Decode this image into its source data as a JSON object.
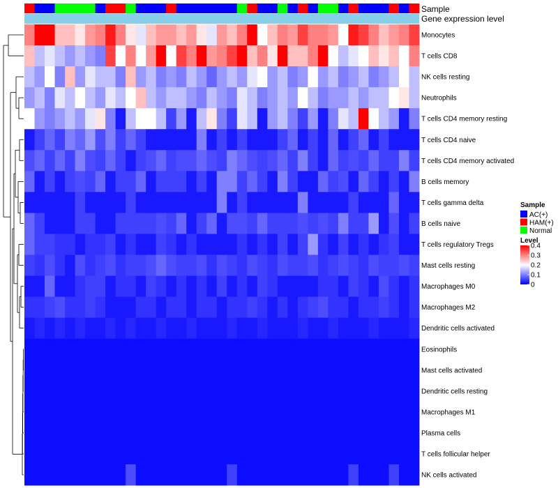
{
  "chart_data": {
    "type": "heatmap",
    "title": "",
    "annotation_tracks": [
      "Sample",
      "Gene expression level"
    ],
    "rows": [
      "Monocytes",
      "T cells CD8",
      "NK cells resting",
      "Neutrophils",
      "T cells CD4 memory resting",
      "T cells CD4 naive",
      "T cells CD4 memory activated",
      "B cells memory",
      "T cells gamma delta",
      "B cells naive",
      "T cells regulatory  Tregs",
      "Mast cells resting",
      "Macrophages M0",
      "Macrophages M2",
      "Dendritic cells activated",
      "Eosinophils",
      "Mast cells activated",
      "Dendritic cells resting",
      "Macrophages M1",
      "Plasma cells",
      "T cells follicular helper",
      "NK cells activated"
    ],
    "sample_groups": [
      "HAM(+)",
      "AC(+)",
      "AC(+)",
      "Normal",
      "Normal",
      "Normal",
      "Normal",
      "AC(+)",
      "HAM(+)",
      "HAM(+)",
      "Normal",
      "AC(+)",
      "AC(+)",
      "AC(+)",
      "HAM(+)",
      "AC(+)",
      "AC(+)",
      "AC(+)",
      "AC(+)",
      "AC(+)",
      "AC(+)",
      "Normal",
      "HAM(+)",
      "AC(+)",
      "AC(+)",
      "Normal",
      "AC(+)",
      "HAM(+)",
      "AC(+)",
      "Normal",
      "Normal",
      "AC(+)",
      "HAM(+)",
      "AC(+)",
      "AC(+)",
      "AC(+)",
      "HAM(+)",
      "AC(+)",
      "HAM(+)"
    ],
    "values": [
      [
        0.3,
        0.4,
        0.4,
        0.25,
        0.25,
        0.22,
        0.28,
        0.3,
        0.38,
        0.3,
        0.22,
        0.18,
        0.25,
        0.28,
        0.28,
        0.25,
        0.28,
        0.22,
        0.18,
        0.28,
        0.25,
        0.3,
        0.4,
        0.2,
        0.25,
        0.3,
        0.28,
        0.35,
        0.3,
        0.3,
        0.28,
        0.2,
        0.38,
        0.35,
        0.3,
        0.25,
        0.28,
        0.3,
        0.35
      ],
      [
        0.25,
        0.15,
        0.18,
        0.15,
        0.12,
        0.15,
        0.12,
        0.1,
        0.35,
        0.2,
        0.3,
        0.2,
        0.28,
        0.4,
        0.2,
        0.35,
        0.3,
        0.4,
        0.28,
        0.3,
        0.35,
        0.4,
        0.25,
        0.3,
        0.22,
        0.4,
        0.25,
        0.25,
        0.3,
        0.4,
        0.2,
        0.15,
        0.18,
        0.2,
        0.25,
        0.22,
        0.25,
        0.2,
        0.3
      ],
      [
        0.15,
        0.12,
        0.2,
        0.1,
        0.25,
        0.12,
        0.18,
        0.15,
        0.15,
        0.1,
        0.25,
        0.12,
        0.15,
        0.1,
        0.12,
        0.1,
        0.15,
        0.12,
        0.08,
        0.12,
        0.15,
        0.12,
        0.18,
        0.2,
        0.12,
        0.15,
        0.1,
        0.12,
        0.2,
        0.12,
        0.15,
        0.1,
        0.12,
        0.15,
        0.1,
        0.12,
        0.15,
        0.2,
        0.15
      ],
      [
        0.12,
        0.15,
        0.1,
        0.18,
        0.15,
        0.2,
        0.15,
        0.12,
        0.18,
        0.15,
        0.2,
        0.25,
        0.15,
        0.12,
        0.15,
        0.15,
        0.12,
        0.1,
        0.15,
        0.12,
        0.1,
        0.18,
        0.15,
        0.1,
        0.12,
        0.15,
        0.12,
        0.2,
        0.15,
        0.1,
        0.12,
        0.12,
        0.15,
        0.12,
        0.15,
        0.15,
        0.2,
        0.22,
        0.15
      ],
      [
        0.2,
        0.12,
        0.1,
        0.12,
        0.15,
        0.12,
        0.18,
        0.22,
        0.1,
        0.02,
        0.15,
        0.2,
        0.2,
        0.15,
        0.05,
        0.12,
        0.02,
        0.15,
        0.22,
        0.1,
        0.05,
        0.18,
        0.15,
        0.02,
        0.12,
        0.15,
        0.1,
        0.05,
        0.12,
        0.02,
        0.1,
        0.18,
        0.15,
        0.4,
        0.2,
        0.15,
        0.12,
        0.02,
        0.1
      ],
      [
        0.02,
        0.05,
        0.08,
        0.05,
        0.1,
        0.08,
        0.12,
        0.06,
        0.1,
        0.05,
        0.08,
        0.05,
        0.02,
        0.02,
        0.02,
        0.02,
        0.02,
        0.1,
        0.02,
        0.05,
        0.02,
        0.05,
        0.02,
        0.02,
        0.02,
        0.05,
        0.08,
        0.02,
        0.05,
        0.02,
        0.08,
        0.02,
        0.05,
        0.08,
        0.02,
        0.05,
        0.02,
        0.02,
        0.02
      ],
      [
        0.06,
        0.08,
        0.05,
        0.08,
        0.05,
        0.1,
        0.06,
        0.05,
        0.08,
        0.05,
        0.02,
        0.05,
        0.06,
        0.08,
        0.05,
        0.06,
        0.06,
        0.08,
        0.06,
        0.05,
        0.1,
        0.08,
        0.06,
        0.05,
        0.06,
        0.08,
        0.05,
        0.1,
        0.05,
        0.02,
        0.08,
        0.05,
        0.06,
        0.05,
        0.08,
        0.05,
        0.05,
        0.1,
        0.05
      ],
      [
        0.08,
        0.02,
        0.05,
        0.02,
        0.05,
        0.06,
        0.05,
        0.08,
        0.02,
        0.05,
        0.05,
        0.08,
        0.02,
        0.05,
        0.05,
        0.05,
        0.02,
        0.05,
        0.02,
        0.1,
        0.1,
        0.05,
        0.08,
        0.05,
        0.02,
        0.1,
        0.05,
        0.02,
        0.02,
        0.08,
        0.05,
        0.06,
        0.02,
        0.08,
        0.05,
        0.02,
        0.05,
        0.02,
        0.1
      ],
      [
        0.02,
        0.02,
        0.02,
        0.02,
        0.02,
        0.05,
        0.02,
        0.02,
        0.02,
        0.02,
        0.05,
        0.02,
        0.02,
        0.02,
        0.02,
        0.02,
        0.02,
        0.02,
        0.02,
        0.1,
        0.02,
        0.05,
        0.02,
        0.02,
        0.02,
        0.02,
        0.02,
        0.1,
        0.02,
        0.02,
        0.02,
        0.02,
        0.05,
        0.02,
        0.02,
        0.02,
        0.08,
        0.02,
        0.02
      ],
      [
        0.08,
        0.05,
        0.02,
        0.02,
        0.02,
        0.05,
        0.05,
        0.02,
        0.02,
        0.05,
        0.05,
        0.05,
        0.05,
        0.06,
        0.05,
        0.08,
        0.02,
        0.05,
        0.08,
        0.02,
        0.06,
        0.06,
        0.05,
        0.08,
        0.05,
        0.05,
        0.05,
        0.06,
        0.05,
        0.06,
        0.05,
        0.1,
        0.05,
        0.05,
        0.12,
        0.02,
        0.06,
        0.02,
        0.05
      ],
      [
        0.08,
        0.05,
        0.05,
        0.04,
        0.04,
        0.02,
        0.04,
        0.04,
        0.05,
        0.02,
        0.04,
        0.02,
        0.02,
        0.05,
        0.04,
        0.02,
        0.04,
        0.02,
        0.02,
        0.02,
        0.02,
        0.04,
        0.02,
        0.04,
        0.02,
        0.05,
        0.02,
        0.05,
        0.12,
        0.04,
        0.02,
        0.05,
        0.02,
        0.04,
        0.02,
        0.04,
        0.05,
        0.02,
        0.02
      ],
      [
        0.05,
        0.04,
        0.06,
        0.04,
        0.02,
        0.06,
        0.04,
        0.05,
        0.06,
        0.04,
        0.05,
        0.05,
        0.06,
        0.08,
        0.06,
        0.05,
        0.05,
        0.06,
        0.04,
        0.06,
        0.05,
        0.04,
        0.06,
        0.05,
        0.04,
        0.06,
        0.05,
        0.05,
        0.06,
        0.04,
        0.05,
        0.06,
        0.05,
        0.04,
        0.06,
        0.05,
        0.05,
        0.06,
        0.05
      ],
      [
        0.02,
        0.02,
        0.08,
        0.02,
        0.02,
        0.04,
        0.05,
        0.05,
        0.02,
        0.04,
        0.04,
        0.02,
        0.05,
        0.04,
        0.02,
        0.04,
        0.02,
        0.04,
        0.02,
        0.05,
        0.02,
        0.04,
        0.02,
        0.05,
        0.04,
        0.02,
        0.02,
        0.02,
        0.02,
        0.04,
        0.04,
        0.02,
        0.05,
        0.04,
        0.02,
        0.06,
        0.04,
        0.02,
        0.04
      ],
      [
        0.04,
        0.04,
        0.05,
        0.06,
        0.04,
        0.04,
        0.05,
        0.04,
        0.02,
        0.02,
        0.02,
        0.04,
        0.04,
        0.02,
        0.04,
        0.04,
        0.02,
        0.04,
        0.04,
        0.02,
        0.04,
        0.04,
        0.05,
        0.04,
        0.02,
        0.04,
        0.02,
        0.04,
        0.05,
        0.06,
        0.04,
        0.04,
        0.02,
        0.04,
        0.04,
        0.05,
        0.04,
        0.02,
        0.04
      ],
      [
        0.02,
        0.03,
        0.02,
        0.03,
        0.02,
        0.03,
        0.02,
        0.02,
        0.03,
        0.02,
        0.03,
        0.02,
        0.02,
        0.03,
        0.02,
        0.02,
        0.03,
        0.02,
        0.02,
        0.02,
        0.03,
        0.02,
        0.02,
        0.03,
        0.02,
        0.02,
        0.02,
        0.03,
        0.02,
        0.02,
        0.03,
        0.02,
        0.02,
        0.02,
        0.03,
        0.02,
        0.02,
        0.02,
        0.03
      ],
      [
        0.01,
        0.01,
        0.01,
        0.01,
        0.01,
        0.01,
        0.01,
        0.01,
        0.01,
        0.01,
        0.01,
        0.01,
        0.01,
        0.01,
        0.01,
        0.01,
        0.01,
        0.01,
        0.01,
        0.01,
        0.01,
        0.01,
        0.01,
        0.01,
        0.01,
        0.01,
        0.01,
        0.01,
        0.01,
        0.01,
        0.01,
        0.01,
        0.01,
        0.01,
        0.01,
        0.01,
        0.01,
        0.01,
        0.01
      ],
      [
        0.01,
        0.01,
        0.01,
        0.01,
        0.01,
        0.01,
        0.01,
        0.01,
        0.01,
        0.01,
        0.01,
        0.01,
        0.01,
        0.01,
        0.01,
        0.01,
        0.01,
        0.01,
        0.01,
        0.01,
        0.01,
        0.01,
        0.01,
        0.01,
        0.01,
        0.01,
        0.01,
        0.01,
        0.01,
        0.01,
        0.01,
        0.01,
        0.01,
        0.01,
        0.01,
        0.01,
        0.01,
        0.01,
        0.01
      ],
      [
        0.01,
        0.01,
        0.01,
        0.01,
        0.01,
        0.01,
        0.01,
        0.01,
        0.01,
        0.01,
        0.01,
        0.01,
        0.01,
        0.01,
        0.01,
        0.01,
        0.01,
        0.01,
        0.01,
        0.01,
        0.01,
        0.01,
        0.01,
        0.01,
        0.01,
        0.01,
        0.01,
        0.01,
        0.01,
        0.01,
        0.01,
        0.01,
        0.01,
        0.01,
        0.01,
        0.01,
        0.01,
        0.01,
        0.01
      ],
      [
        0.01,
        0.01,
        0.01,
        0.01,
        0.01,
        0.01,
        0.01,
        0.01,
        0.01,
        0.01,
        0.01,
        0.01,
        0.01,
        0.01,
        0.01,
        0.01,
        0.01,
        0.01,
        0.01,
        0.01,
        0.01,
        0.01,
        0.01,
        0.01,
        0.01,
        0.01,
        0.01,
        0.01,
        0.01,
        0.01,
        0.01,
        0.01,
        0.01,
        0.01,
        0.01,
        0.01,
        0.01,
        0.01,
        0.01
      ],
      [
        0.01,
        0.01,
        0.01,
        0.01,
        0.01,
        0.01,
        0.01,
        0.01,
        0.01,
        0.01,
        0.01,
        0.01,
        0.01,
        0.01,
        0.01,
        0.01,
        0.01,
        0.01,
        0.01,
        0.01,
        0.01,
        0.01,
        0.01,
        0.01,
        0.01,
        0.01,
        0.01,
        0.01,
        0.01,
        0.01,
        0.01,
        0.01,
        0.01,
        0.01,
        0.01,
        0.01,
        0.01,
        0.01,
        0.01
      ],
      [
        0.01,
        0.01,
        0.01,
        0.01,
        0.01,
        0.01,
        0.01,
        0.01,
        0.01,
        0.01,
        0.01,
        0.01,
        0.01,
        0.01,
        0.01,
        0.01,
        0.01,
        0.01,
        0.01,
        0.01,
        0.01,
        0.01,
        0.01,
        0.01,
        0.01,
        0.01,
        0.01,
        0.01,
        0.01,
        0.01,
        0.01,
        0.01,
        0.01,
        0.01,
        0.01,
        0.01,
        0.01,
        0.01,
        0.01
      ],
      [
        0.01,
        0.01,
        0.01,
        0.01,
        0.01,
        0.01,
        0.01,
        0.01,
        0.01,
        0.01,
        0.06,
        0.01,
        0.01,
        0.01,
        0.01,
        0.01,
        0.01,
        0.01,
        0.01,
        0.01,
        0.05,
        0.01,
        0.01,
        0.01,
        0.01,
        0.01,
        0.01,
        0.01,
        0.01,
        0.01,
        0.01,
        0.01,
        0.05,
        0.01,
        0.01,
        0.01,
        0.05,
        0.01,
        0.01
      ]
    ],
    "legend": {
      "sample_title": "Sample",
      "sample_entries": [
        {
          "label": "AC(+)",
          "color": "#0000ff"
        },
        {
          "label": "HAM(+)",
          "color": "#ff0000"
        },
        {
          "label": "Normal",
          "color": "#00ff00"
        }
      ],
      "level_title": "Level",
      "level_ticks": [
        "0.4",
        "0.3",
        "0.2",
        "0.1",
        "0"
      ],
      "level_range": [
        0,
        0.4
      ]
    },
    "colors": {
      "low": "#0000ff",
      "mid": "#ffffff",
      "high": "#ff0000",
      "expression_track": "#87ceeb"
    }
  }
}
